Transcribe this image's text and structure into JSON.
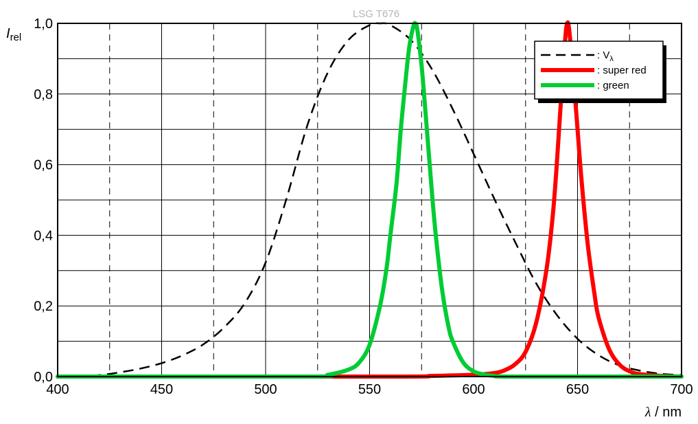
{
  "chart_data": {
    "type": "line",
    "title": "LSG T676",
    "ylabel_main": "I",
    "ylabel_sub": "rel",
    "xlabel_symbol": "λ",
    "xlabel_unit": " / nm",
    "xlim": [
      400,
      700
    ],
    "ylim": [
      0,
      1
    ],
    "x_ticks": [
      400,
      450,
      500,
      550,
      600,
      650,
      700
    ],
    "x_tick_labels": [
      "400",
      "450",
      "500",
      "550",
      "600",
      "650",
      "700"
    ],
    "y_ticks": [
      0,
      0.2,
      0.4,
      0.6,
      0.8,
      1.0
    ],
    "y_tick_labels": [
      "0,0",
      "0,2",
      "0,4",
      "0,6",
      "0,8",
      "1,0"
    ],
    "grid": true,
    "legend_position": "top-right",
    "series": [
      {
        "name": ": V",
        "name_sub": "λ",
        "color": "#000000",
        "style": "dashed",
        "x": [
          400,
          410,
          420,
          430,
          440,
          450,
          460,
          470,
          480,
          490,
          500,
          510,
          520,
          530,
          540,
          550,
          555,
          560,
          570,
          580,
          590,
          600,
          610,
          620,
          630,
          640,
          650,
          660,
          670,
          680,
          690,
          700
        ],
        "y": [
          0.0,
          0.0,
          0.004,
          0.012,
          0.023,
          0.038,
          0.06,
          0.091,
          0.139,
          0.208,
          0.323,
          0.503,
          0.71,
          0.862,
          0.954,
          0.995,
          1.0,
          0.995,
          0.952,
          0.87,
          0.757,
          0.631,
          0.503,
          0.381,
          0.265,
          0.175,
          0.107,
          0.061,
          0.032,
          0.017,
          0.008,
          0.004
        ]
      },
      {
        "name": ": super red",
        "color": "#ff0000",
        "style": "solid",
        "x": [
          400,
          560,
          580,
          600,
          610,
          615,
          620,
          625,
          630,
          635,
          638,
          640,
          642,
          644,
          645,
          646,
          648,
          650,
          652,
          655,
          658,
          660,
          665,
          670,
          675,
          680,
          690,
          700
        ],
        "y": [
          0.0,
          0.0,
          0.002,
          0.005,
          0.01,
          0.018,
          0.035,
          0.07,
          0.15,
          0.3,
          0.45,
          0.6,
          0.78,
          0.95,
          1.0,
          0.98,
          0.85,
          0.7,
          0.55,
          0.37,
          0.24,
          0.17,
          0.08,
          0.035,
          0.015,
          0.007,
          0.002,
          0.0
        ]
      },
      {
        "name": ": green",
        "color": "#00cc33",
        "style": "solid",
        "x": [
          400,
          520,
          530,
          540,
          545,
          550,
          555,
          558,
          560,
          563,
          565,
          567,
          569,
          571,
          572,
          573,
          575,
          577,
          580,
          582,
          585,
          588,
          590,
          595,
          600,
          605,
          610,
          620,
          700
        ],
        "y": [
          0.0,
          0.0,
          0.005,
          0.02,
          0.04,
          0.09,
          0.2,
          0.3,
          0.4,
          0.55,
          0.7,
          0.82,
          0.93,
          0.99,
          1.0,
          0.98,
          0.88,
          0.74,
          0.52,
          0.39,
          0.24,
          0.14,
          0.1,
          0.04,
          0.015,
          0.006,
          0.002,
          0.0,
          0.0
        ]
      }
    ]
  }
}
